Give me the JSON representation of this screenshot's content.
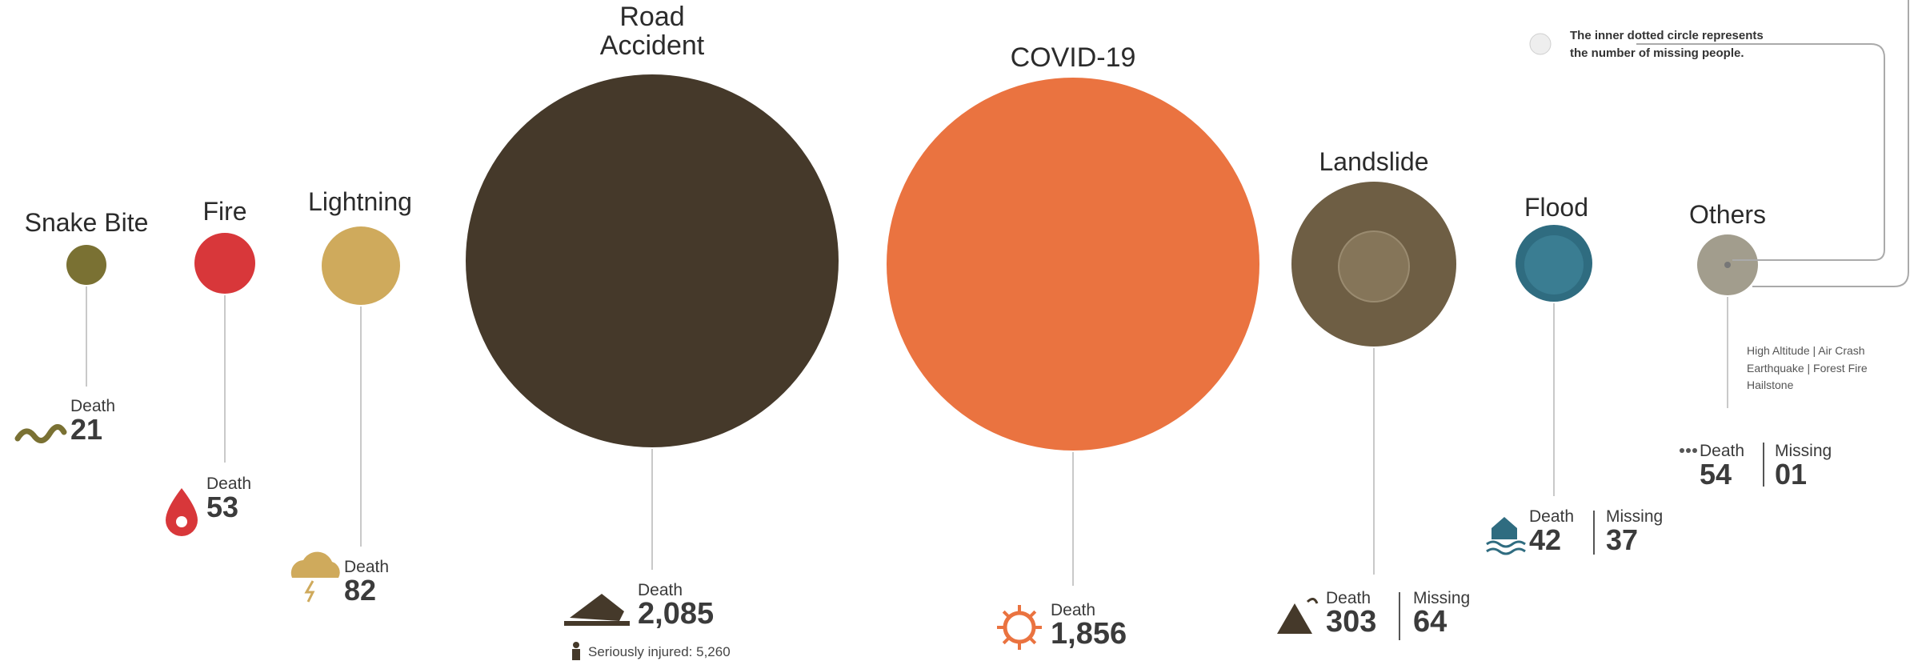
{
  "chart_data": {
    "type": "bubble",
    "legend_note": [
      "The inner dotted circle represents",
      "the number of missing people."
    ],
    "categories": [
      {
        "name": "Snake Bite",
        "death_label": "Death",
        "death": 21,
        "display": "21",
        "color": "#7a7133",
        "icon": "snake-icon"
      },
      {
        "name": "Fire",
        "death_label": "Death",
        "death": 53,
        "display": "53",
        "color": "#d8373a",
        "icon": "drop-icon"
      },
      {
        "name": "Lightning",
        "death_label": "Death",
        "death": 82,
        "display": "82",
        "color": "#cfaa5c",
        "icon": "storm-cloud-icon"
      },
      {
        "name_lines": [
          "Road",
          "Accident"
        ],
        "name": "Road Accident",
        "death_label": "Death",
        "death": 2085,
        "display": "2,085",
        "injured_label": "Seriously injured: 5,260",
        "injured": 5260,
        "color": "#45392a",
        "icon": "car-crash-icon"
      },
      {
        "name": "COVID-19",
        "death_label": "Death",
        "death": 1856,
        "display": "1,856",
        "color": "#ea7340",
        "icon": "virus-icon"
      },
      {
        "name": "Landslide",
        "death_label": "Death",
        "death": 303,
        "display": "303",
        "missing_label": "Missing",
        "missing": 64,
        "missing_display": "64",
        "color": "#6e5e44",
        "icon": "landslide-icon"
      },
      {
        "name": "Flood",
        "death_label": "Death",
        "death": 42,
        "display": "42",
        "missing_label": "Missing",
        "missing": 37,
        "missing_display": "37",
        "color": "#2f6c80",
        "icon": "flood-house-icon"
      },
      {
        "name": "Others",
        "death_label": "Death",
        "death": 54,
        "display": "54",
        "missing_label": "Missing",
        "missing": 1,
        "missing_display": "01",
        "color": "#a29d8d",
        "icon": "dots-icon",
        "note_lines": [
          "High Altitude | Air Crash",
          "Earthquake | Forest Fire",
          "Hailstone"
        ]
      }
    ]
  }
}
